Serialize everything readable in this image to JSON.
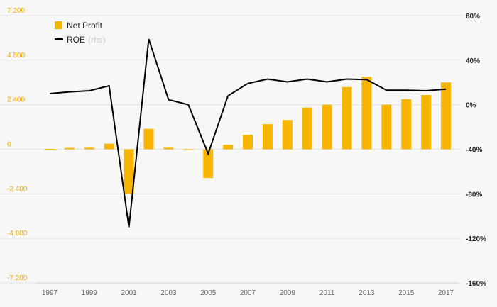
{
  "chart_data": {
    "type": "bar+line",
    "colors": {
      "bar": "#f7b500",
      "line": "#000000",
      "left_ticks": "#f2a900",
      "grid": "#e4e4e4"
    },
    "legend": {
      "position": "top-left",
      "items": [
        {
          "label": "Net Profit",
          "sub": "",
          "marker": "square"
        },
        {
          "label": "ROE",
          "sub": "(rhs)",
          "marker": "line"
        }
      ]
    },
    "x": [
      1997,
      1998,
      1999,
      2000,
      2001,
      2002,
      2003,
      2004,
      2005,
      2006,
      2007,
      2008,
      2009,
      2010,
      2011,
      2012,
      2013,
      2014,
      2015,
      2016,
      2017
    ],
    "x_tick_labels": [
      "1997",
      "1999",
      "2001",
      "2003",
      "2005",
      "2007",
      "2009",
      "2011",
      "2013",
      "2015",
      "2017"
    ],
    "y_left": {
      "range": [
        -7200,
        7200
      ],
      "ticks": [
        7200,
        4800,
        2400,
        0,
        -2400,
        -4800,
        -7200
      ],
      "tick_labels": [
        "7 200",
        "4 800",
        "2 400",
        "0",
        "-2 400",
        "-4 800",
        "-7 200"
      ]
    },
    "y_right": {
      "range": [
        -160,
        80
      ],
      "ticks": [
        80,
        40,
        0,
        -40,
        -80,
        -120,
        -160
      ],
      "tick_labels": [
        "80%",
        "40%",
        "0%",
        "-40%",
        "-80%",
        "-120%",
        "-160%"
      ]
    },
    "grid": true,
    "series": [
      {
        "name": "Net Profit",
        "type": "bar",
        "axis": "left",
        "values": [
          20,
          70,
          80,
          300,
          -2400,
          1100,
          80,
          -40,
          -1550,
          240,
          780,
          1350,
          1580,
          2250,
          2400,
          3350,
          3900,
          2400,
          2700,
          2920,
          3600
        ]
      },
      {
        "name": "ROE",
        "type": "line",
        "axis": "right",
        "values": [
          10,
          11.5,
          12.5,
          17,
          -110,
          59,
          4.5,
          0,
          -44,
          8,
          19,
          23,
          20.5,
          23,
          20.5,
          23,
          22.5,
          13,
          13,
          12.5,
          14
        ]
      }
    ]
  }
}
